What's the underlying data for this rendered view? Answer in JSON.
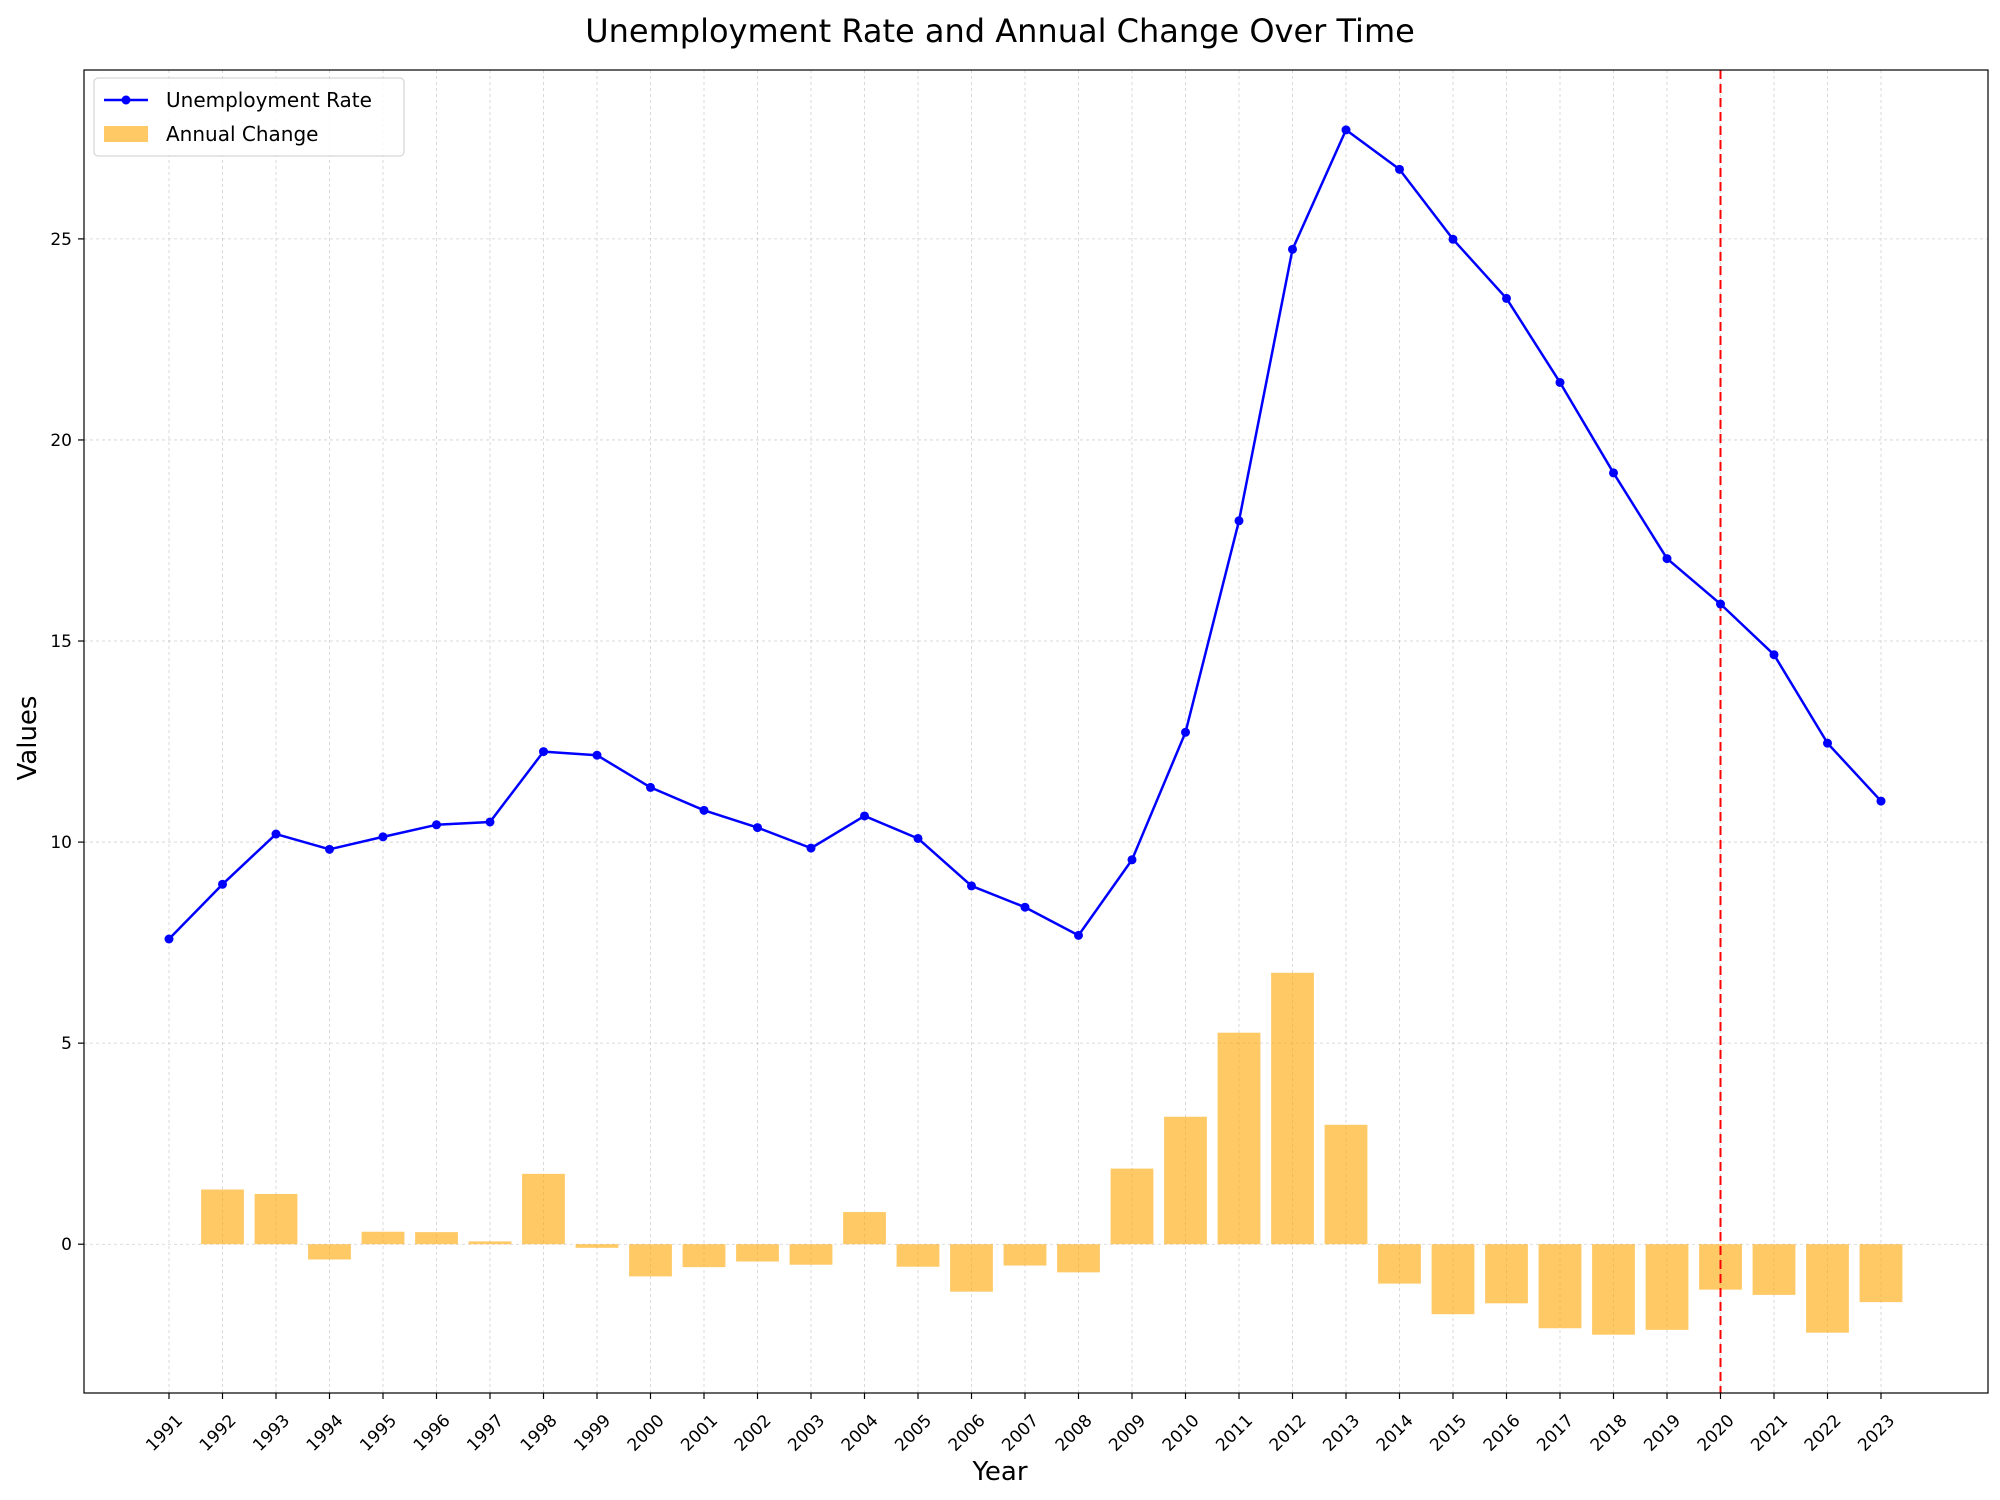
{
  "chart_data": {
    "type": "bar+line",
    "title": "Unemployment Rate and Annual Change Over Time",
    "xlabel": "Year",
    "ylabel": "Values",
    "ylim": [
      -3.7,
      29.2
    ],
    "yticks": [
      0,
      5,
      10,
      15,
      20,
      25
    ],
    "grid": true,
    "legend_position": "top-left",
    "categories": [
      "1991",
      "1992",
      "1993",
      "1994",
      "1995",
      "1996",
      "1997",
      "1998",
      "1999",
      "2000",
      "2001",
      "2002",
      "2003",
      "2004",
      "2005",
      "2006",
      "2007",
      "2008",
      "2009",
      "2010",
      "2011",
      "2012",
      "2013",
      "2014",
      "2015",
      "2016",
      "2017",
      "2018",
      "2019",
      "2020",
      "2021",
      "2022",
      "2023"
    ],
    "series": [
      {
        "name": "Unemployment Rate",
        "type": "line",
        "color": "#0000ff",
        "values": [
          7.59,
          8.95,
          10.2,
          9.82,
          10.13,
          10.43,
          10.5,
          12.25,
          12.16,
          11.36,
          10.79,
          10.36,
          9.85,
          10.65,
          10.09,
          8.91,
          8.38,
          7.68,
          9.56,
          12.73,
          17.99,
          24.74,
          27.71,
          26.73,
          24.99,
          23.52,
          21.43,
          19.18,
          17.05,
          15.92,
          14.66,
          12.46,
          11.02
        ]
      },
      {
        "name": "Annual Change",
        "type": "bar",
        "color": "#ffa500",
        "values": [
          null,
          1.36,
          1.25,
          -0.38,
          0.31,
          0.3,
          0.07,
          1.75,
          -0.09,
          -0.8,
          -0.57,
          -0.43,
          -0.51,
          0.8,
          -0.56,
          -1.18,
          -0.53,
          -0.7,
          1.88,
          3.17,
          5.26,
          6.75,
          2.97,
          -0.98,
          -1.74,
          -1.47,
          -2.09,
          -2.25,
          -2.13,
          -1.13,
          -1.26,
          -2.2,
          -1.44
        ]
      }
    ],
    "annotations": [
      {
        "type": "vertical-line",
        "x": "2020",
        "color": "#ff0000",
        "style": "dashed"
      }
    ]
  }
}
